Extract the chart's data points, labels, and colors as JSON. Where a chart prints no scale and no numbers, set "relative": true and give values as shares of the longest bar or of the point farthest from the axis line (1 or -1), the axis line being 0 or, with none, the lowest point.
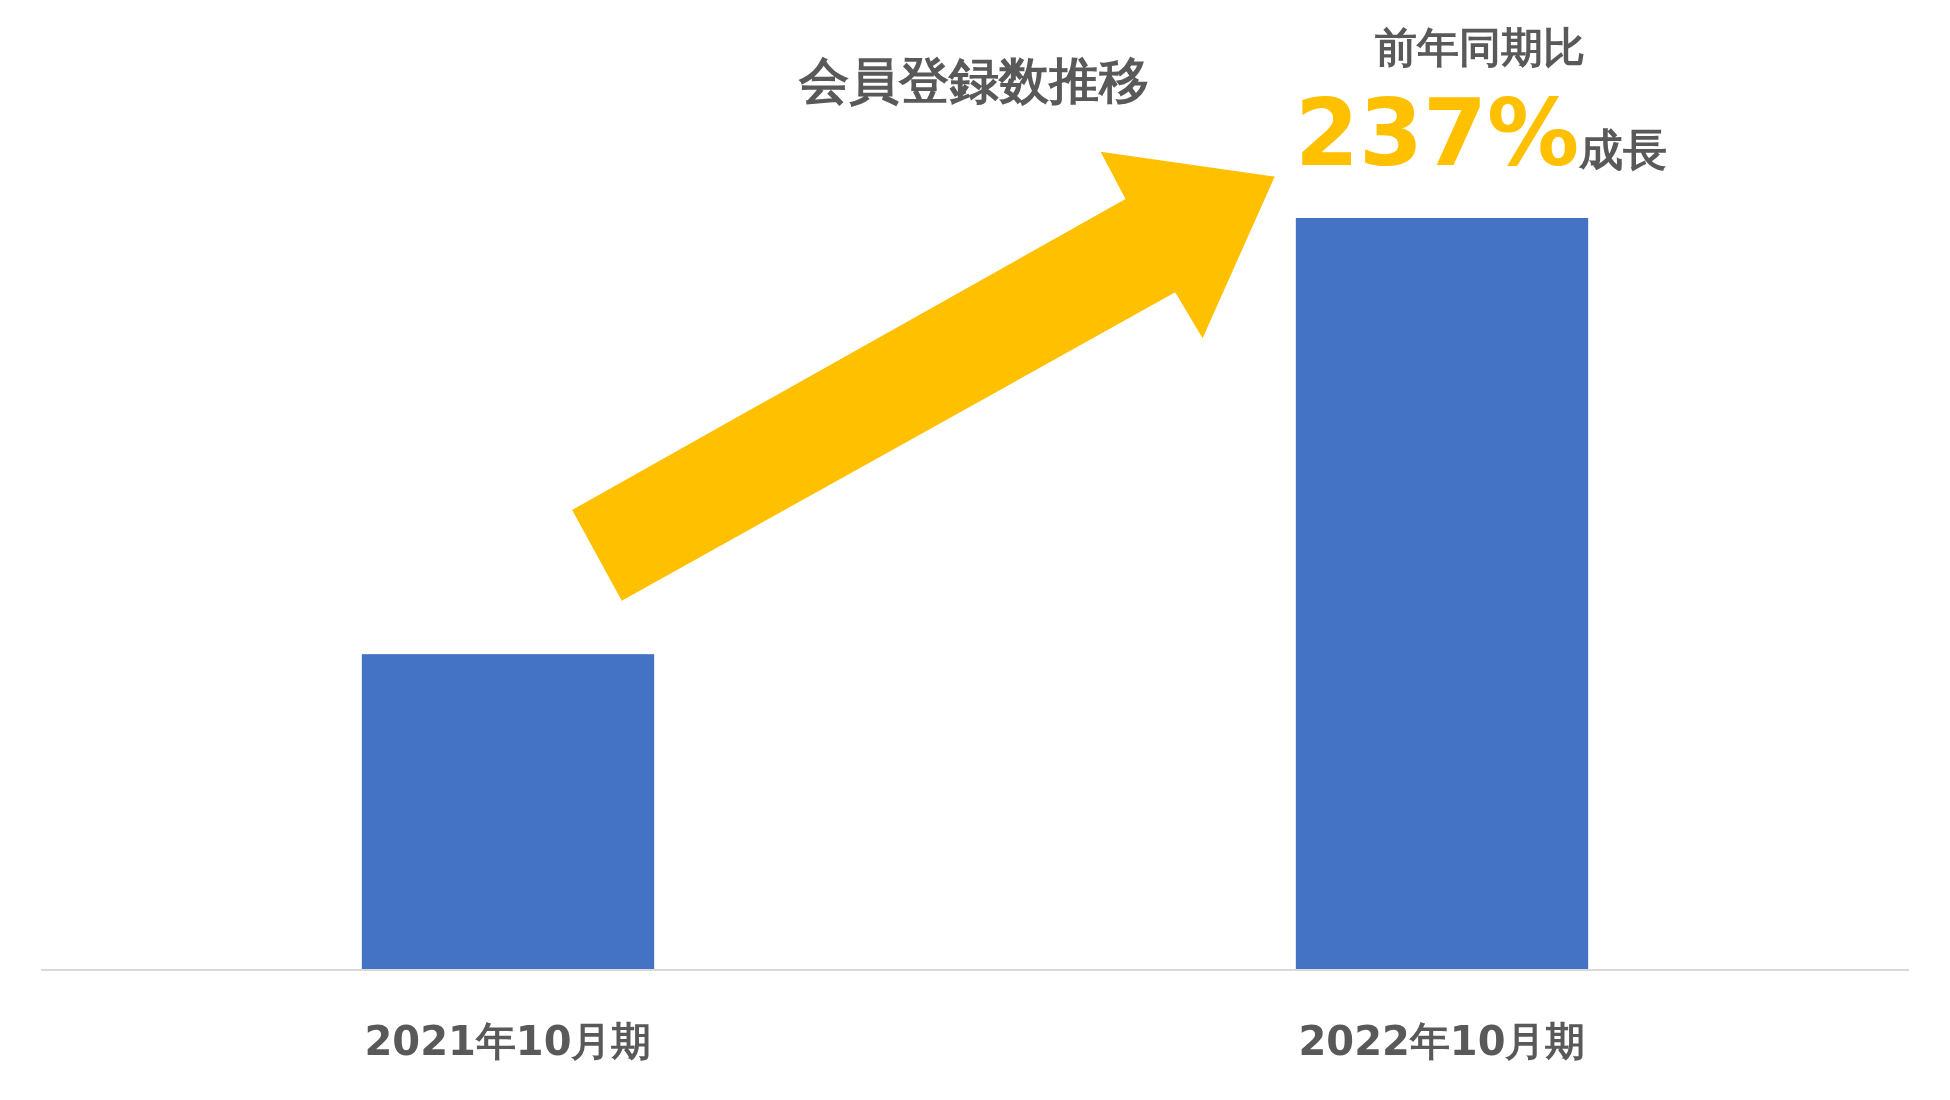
{
  "chart_data": {
    "type": "bar",
    "title": "会員登録数推移",
    "categories": [
      "2021年10月期",
      "2022年10月期"
    ],
    "values": [
      0.42,
      1
    ],
    "relative": true,
    "color": "#4472c4",
    "annotations": [
      "前年同期比",
      "237%",
      "成長"
    ]
  }
}
